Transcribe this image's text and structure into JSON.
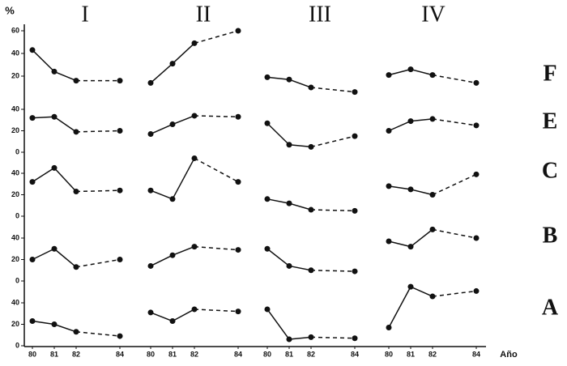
{
  "chart_data": {
    "type": "line",
    "y_label": "%",
    "x_label": "Año",
    "columns": [
      "I",
      "II",
      "III",
      "IV"
    ],
    "x": [
      80,
      81,
      82,
      84
    ],
    "xlim": [
      80,
      84
    ],
    "rows": [
      {
        "label": "F",
        "ylim": [
          0,
          60
        ],
        "yticks": [
          20,
          40,
          60
        ],
        "series": [
          [
            43,
            24,
            16,
            16
          ],
          [
            14,
            31,
            49,
            60
          ],
          [
            19,
            17,
            10,
            6
          ],
          [
            21,
            26,
            21,
            14
          ]
        ]
      },
      {
        "label": "E",
        "ylim": [
          0,
          40
        ],
        "yticks": [
          0,
          20,
          40
        ],
        "series": [
          [
            32,
            33,
            19,
            20
          ],
          [
            17,
            26,
            34,
            33
          ],
          [
            27,
            7,
            5,
            15
          ],
          [
            20,
            29,
            31,
            25
          ]
        ]
      },
      {
        "label": "C",
        "ylim": [
          0,
          40
        ],
        "yticks": [
          0,
          20,
          40
        ],
        "series": [
          [
            32,
            45,
            23,
            24
          ],
          [
            24,
            16,
            54,
            32
          ],
          [
            16,
            12,
            6,
            5
          ],
          [
            28,
            25,
            20,
            39
          ]
        ]
      },
      {
        "label": "B",
        "ylim": [
          0,
          40
        ],
        "yticks": [
          0,
          20,
          40
        ],
        "series": [
          [
            20,
            30,
            13,
            20
          ],
          [
            14,
            24,
            32,
            29
          ],
          [
            30,
            14,
            10,
            9
          ],
          [
            37,
            32,
            48,
            40
          ]
        ]
      },
      {
        "label": "A",
        "ylim": [
          0,
          40
        ],
        "yticks": [
          0,
          20,
          40
        ],
        "series": [
          [
            23,
            20,
            13,
            9
          ],
          [
            31,
            23,
            34,
            32
          ],
          [
            34,
            6,
            8,
            7
          ],
          [
            17,
            55,
            46,
            51
          ]
        ]
      }
    ]
  }
}
